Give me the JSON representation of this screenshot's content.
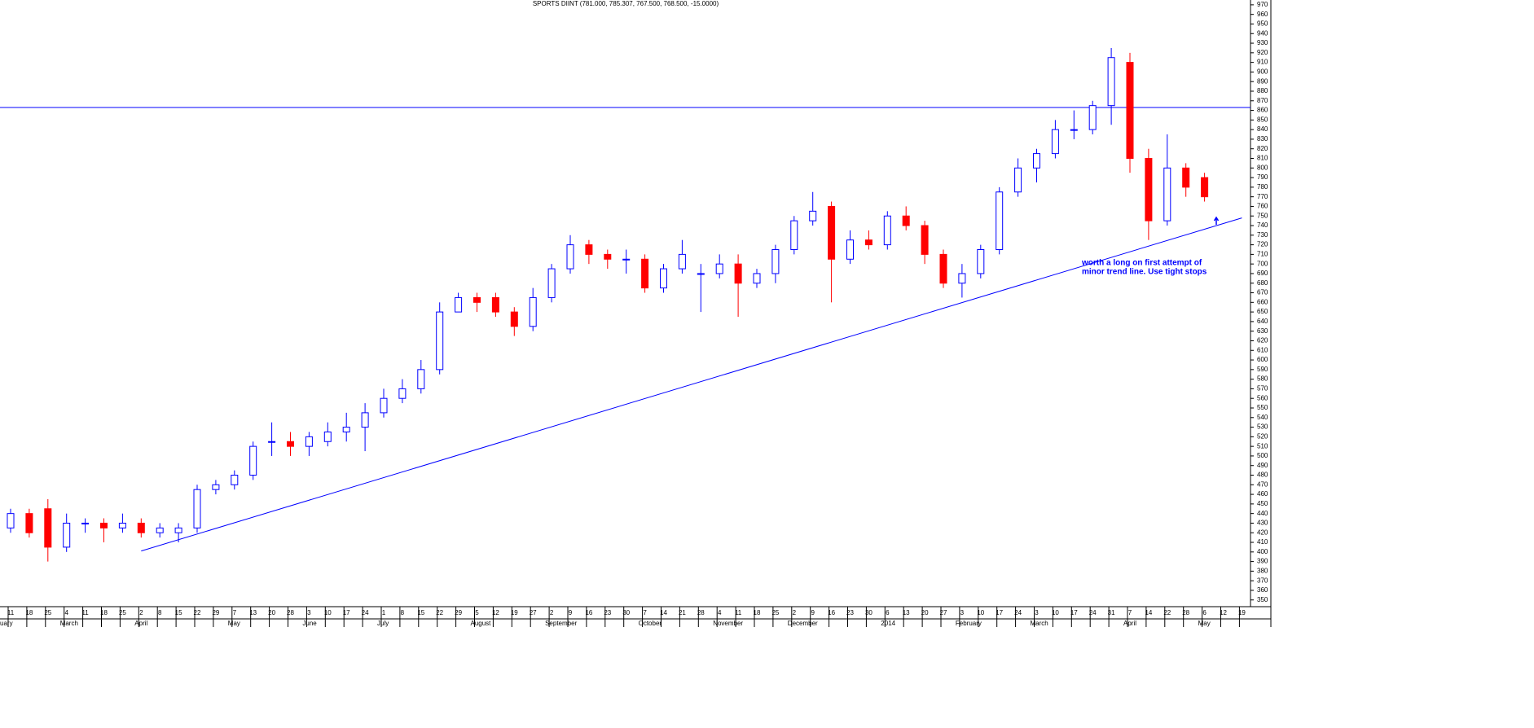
{
  "chart_data": {
    "type": "candlestick",
    "title": "SPORTS DIINT (781.000, 785.307, 767.500, 768.500, -15.0000)",
    "categories": [
      "11",
      "18",
      "25",
      "4",
      "11",
      "18",
      "25",
      "2",
      "8",
      "15",
      "22",
      "29",
      "7",
      "13",
      "20",
      "28",
      "3",
      "10",
      "17",
      "24",
      "1",
      "8",
      "15",
      "22",
      "29",
      "5",
      "12",
      "19",
      "27",
      "2",
      "9",
      "16",
      "23",
      "30",
      "7",
      "14",
      "21",
      "28",
      "4",
      "11",
      "18",
      "25",
      "2",
      "9",
      "16",
      "23",
      "30",
      "6",
      "13",
      "20",
      "27",
      "3",
      "10",
      "17",
      "24",
      "3",
      "10",
      "17",
      "24",
      "31",
      "7",
      "14",
      "22",
      "28",
      "6",
      "12",
      "19"
    ],
    "month_labels": [
      "uary",
      null,
      null,
      "March",
      null,
      null,
      null,
      "April",
      null,
      null,
      null,
      null,
      "May",
      null,
      null,
      null,
      "June",
      null,
      null,
      null,
      "July",
      null,
      null,
      null,
      null,
      "August",
      null,
      null,
      null,
      "September",
      null,
      null,
      null,
      null,
      "October",
      null,
      null,
      null,
      "November",
      null,
      null,
      null,
      "December",
      null,
      null,
      null,
      null,
      "2014",
      null,
      null,
      null,
      "February",
      null,
      null,
      null,
      "March",
      null,
      null,
      null,
      null,
      "April",
      null,
      null,
      null,
      "May",
      null,
      null
    ],
    "open": [
      425,
      440,
      445,
      405,
      430,
      430,
      425,
      430,
      420,
      420,
      425,
      465,
      470,
      480,
      515,
      515,
      510,
      515,
      525,
      530,
      545,
      560,
      570,
      590,
      650,
      665,
      665,
      650,
      635,
      665,
      695,
      720,
      710,
      705,
      705,
      675,
      695,
      690,
      690,
      700,
      680,
      690,
      715,
      745,
      760,
      705,
      725,
      720,
      750,
      740,
      710,
      680,
      690,
      715,
      775,
      800,
      815,
      840,
      840,
      865,
      910,
      810,
      745,
      800,
      790,
      null,
      null
    ],
    "high": [
      445,
      445,
      455,
      440,
      435,
      435,
      440,
      435,
      430,
      430,
      470,
      475,
      485,
      515,
      535,
      525,
      525,
      535,
      545,
      555,
      570,
      580,
      600,
      660,
      670,
      670,
      670,
      655,
      675,
      700,
      730,
      725,
      715,
      715,
      710,
      700,
      725,
      700,
      710,
      710,
      695,
      720,
      750,
      775,
      765,
      735,
      735,
      755,
      760,
      745,
      715,
      700,
      720,
      780,
      810,
      820,
      850,
      860,
      870,
      925,
      920,
      820,
      835,
      805,
      795,
      null,
      null
    ],
    "low": [
      420,
      415,
      390,
      400,
      420,
      410,
      420,
      415,
      415,
      410,
      420,
      460,
      465,
      475,
      500,
      500,
      500,
      510,
      515,
      505,
      540,
      555,
      565,
      585,
      650,
      650,
      645,
      625,
      630,
      660,
      690,
      700,
      695,
      690,
      670,
      670,
      690,
      650,
      685,
      645,
      675,
      680,
      710,
      740,
      660,
      700,
      715,
      715,
      735,
      700,
      675,
      665,
      685,
      710,
      770,
      785,
      810,
      830,
      835,
      845,
      795,
      725,
      740,
      770,
      765,
      null,
      null
    ],
    "close": [
      440,
      420,
      405,
      430,
      430,
      425,
      430,
      420,
      425,
      425,
      465,
      470,
      480,
      510,
      515,
      510,
      520,
      525,
      530,
      545,
      560,
      570,
      590,
      650,
      665,
      660,
      650,
      635,
      665,
      695,
      720,
      710,
      705,
      705,
      675,
      695,
      710,
      690,
      700,
      680,
      690,
      715,
      745,
      755,
      705,
      725,
      720,
      750,
      740,
      710,
      680,
      690,
      715,
      775,
      800,
      815,
      840,
      840,
      865,
      915,
      810,
      745,
      800,
      780,
      770,
      null,
      null
    ],
    "up_color": "#0000ff",
    "down_color": "#ff0000",
    "ylim": [
      343,
      975
    ],
    "yticks": [
      350,
      360,
      370,
      380,
      390,
      400,
      410,
      420,
      430,
      440,
      450,
      460,
      470,
      480,
      490,
      500,
      510,
      520,
      530,
      540,
      550,
      560,
      570,
      580,
      590,
      600,
      610,
      620,
      630,
      640,
      650,
      660,
      670,
      680,
      690,
      700,
      710,
      720,
      730,
      740,
      750,
      760,
      770,
      780,
      790,
      800,
      810,
      820,
      830,
      840,
      850,
      860,
      870,
      880,
      890,
      900,
      910,
      920,
      930,
      940,
      950,
      960,
      970
    ],
    "hline": 863,
    "trendline": {
      "start": [
        7,
        401
      ],
      "end": [
        66,
        748
      ]
    },
    "annotation": [
      "worth a long on first attempt of",
      "minor trend line. Use tight stops"
    ]
  }
}
